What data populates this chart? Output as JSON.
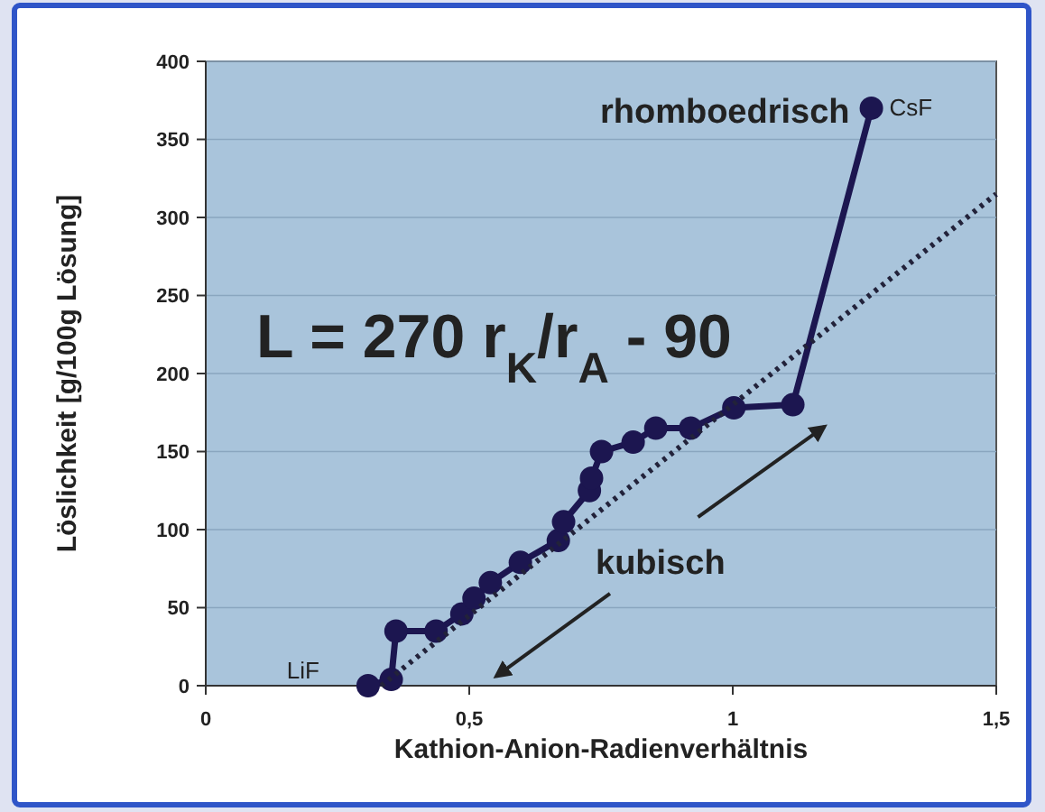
{
  "chart_data": {
    "type": "line",
    "xlabel": "Kathion-Anion-Radienverhältnis",
    "ylabel": "Löslichkeit [g/100g Lösung]",
    "xlim": [
      0,
      1.5
    ],
    "xticks": [
      0,
      {
        "value": 0.5,
        "label": "0,5"
      },
      1,
      {
        "value": 1.5,
        "label": "1,5"
      }
    ],
    "ylim": [
      0,
      400
    ],
    "yticks": [
      0,
      50,
      100,
      150,
      200,
      250,
      300,
      350,
      400
    ],
    "grid": "y",
    "series": [
      {
        "color": "#1c1650",
        "marker": "circle",
        "line_style": "solid",
        "x": [
          0.308,
          0.352,
          0.361,
          0.437,
          0.486,
          0.509,
          0.54,
          0.597,
          0.669,
          0.679,
          0.728,
          0.732,
          0.751,
          0.811,
          0.854,
          0.92,
          1.002,
          1.114,
          1.263
        ],
        "values": [
          0,
          4,
          35,
          35,
          46,
          56,
          66,
          79,
          93,
          105,
          125,
          133,
          150,
          156,
          165,
          165,
          178,
          180,
          370
        ]
      },
      {
        "color": "#22223a",
        "marker": "none",
        "line_style": "dotted",
        "x": [
          0.333,
          1.5
        ],
        "values": [
          0,
          315
        ]
      }
    ],
    "annotations": [
      "LiF",
      "CsF",
      "rhomboedrisch",
      "L = 270 r$_{K}$/r$_{A}$ - 90",
      "kubisch"
    ]
  }
}
